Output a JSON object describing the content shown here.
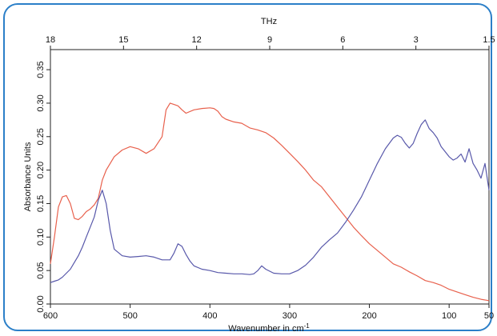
{
  "chart_data": {
    "type": "line",
    "title": "",
    "xlabel": "Wavenumber in cm",
    "xlabel_superscript": "-1",
    "ylabel": "Absorbance Units",
    "top_axis_label": "THz",
    "xlim": [
      600,
      50
    ],
    "ylim": [
      0.0,
      0.38
    ],
    "x_ticks": [
      600,
      500,
      400,
      300,
      200,
      100,
      50
    ],
    "y_ticks": [
      0.0,
      0.05,
      0.1,
      0.15,
      0.2,
      0.25,
      0.3,
      0.35
    ],
    "y_tick_labels": [
      "0.00",
      "0.05",
      "0.10",
      "0.15",
      "0.20",
      "0.25",
      "0.30",
      "0.35"
    ],
    "top_ticks": [
      "18",
      "15",
      "12",
      "9",
      "6",
      "3",
      "1.5"
    ],
    "grid": false,
    "series": [
      {
        "color": "#e8604c",
        "x": [
          600,
          595,
          590,
          585,
          580,
          575,
          570,
          565,
          560,
          555,
          550,
          545,
          540,
          535,
          530,
          520,
          510,
          500,
          490,
          480,
          470,
          460,
          455,
          450,
          445,
          440,
          435,
          430,
          420,
          410,
          400,
          395,
          390,
          385,
          380,
          370,
          360,
          350,
          340,
          330,
          320,
          310,
          300,
          290,
          280,
          270,
          260,
          250,
          240,
          230,
          220,
          210,
          200,
          190,
          180,
          170,
          160,
          150,
          140,
          130,
          120,
          110,
          100,
          90,
          80,
          70,
          60,
          50
        ],
        "y": [
          0.06,
          0.1,
          0.145,
          0.16,
          0.162,
          0.15,
          0.128,
          0.126,
          0.131,
          0.138,
          0.142,
          0.148,
          0.158,
          0.185,
          0.2,
          0.22,
          0.23,
          0.235,
          0.232,
          0.225,
          0.232,
          0.25,
          0.29,
          0.3,
          0.298,
          0.296,
          0.29,
          0.285,
          0.29,
          0.292,
          0.293,
          0.292,
          0.288,
          0.28,
          0.276,
          0.272,
          0.27,
          0.263,
          0.26,
          0.256,
          0.248,
          0.237,
          0.225,
          0.213,
          0.2,
          0.185,
          0.175,
          0.16,
          0.145,
          0.13,
          0.115,
          0.102,
          0.09,
          0.08,
          0.07,
          0.06,
          0.055,
          0.048,
          0.042,
          0.035,
          0.032,
          0.028,
          0.022,
          0.018,
          0.014,
          0.01,
          0.007,
          0.005
        ]
      },
      {
        "color": "#5858aa",
        "x": [
          600,
          595,
          590,
          585,
          580,
          575,
          570,
          565,
          560,
          555,
          550,
          545,
          540,
          535,
          530,
          525,
          520,
          510,
          500,
          490,
          480,
          470,
          460,
          450,
          445,
          440,
          435,
          430,
          425,
          420,
          410,
          400,
          390,
          380,
          370,
          360,
          350,
          345,
          340,
          335,
          330,
          320,
          310,
          300,
          290,
          280,
          270,
          260,
          250,
          240,
          230,
          220,
          210,
          200,
          190,
          180,
          170,
          165,
          160,
          155,
          150,
          145,
          140,
          135,
          130,
          125,
          120,
          115,
          110,
          100,
          95,
          90,
          85,
          80,
          75,
          70,
          65,
          60,
          55,
          50
        ],
        "y": [
          0.032,
          0.034,
          0.036,
          0.04,
          0.046,
          0.052,
          0.062,
          0.072,
          0.085,
          0.1,
          0.115,
          0.13,
          0.155,
          0.17,
          0.15,
          0.11,
          0.082,
          0.072,
          0.07,
          0.071,
          0.072,
          0.07,
          0.066,
          0.066,
          0.076,
          0.09,
          0.086,
          0.074,
          0.064,
          0.057,
          0.052,
          0.05,
          0.047,
          0.046,
          0.045,
          0.045,
          0.044,
          0.045,
          0.05,
          0.057,
          0.052,
          0.046,
          0.045,
          0.045,
          0.05,
          0.058,
          0.07,
          0.085,
          0.096,
          0.106,
          0.122,
          0.14,
          0.16,
          0.185,
          0.21,
          0.232,
          0.248,
          0.252,
          0.249,
          0.24,
          0.233,
          0.24,
          0.255,
          0.268,
          0.275,
          0.262,
          0.256,
          0.248,
          0.235,
          0.22,
          0.215,
          0.218,
          0.224,
          0.212,
          0.232,
          0.21,
          0.2,
          0.188,
          0.21,
          0.17
        ]
      }
    ]
  }
}
